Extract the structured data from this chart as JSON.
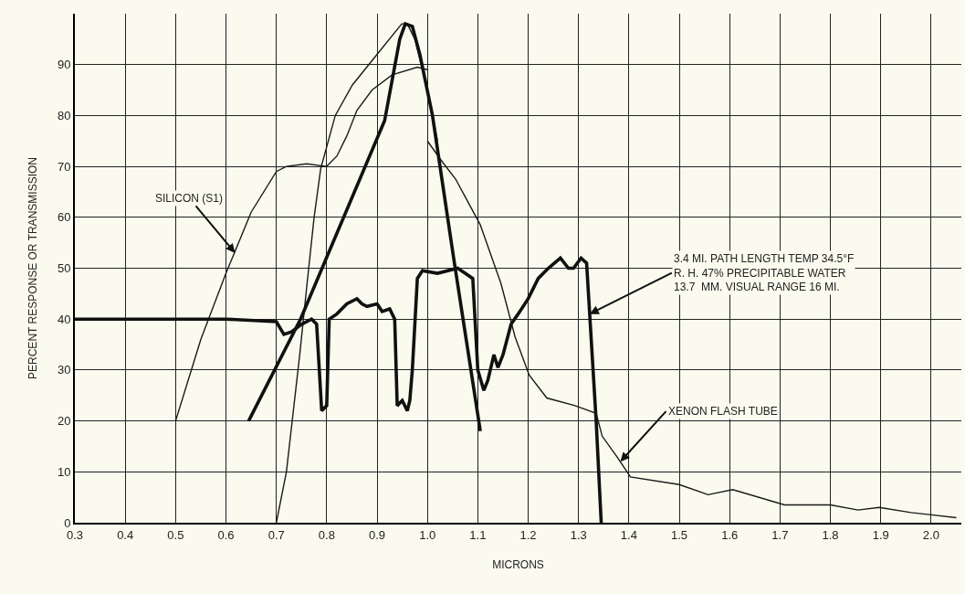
{
  "chart_data": {
    "type": "line",
    "xlabel": "MICRONS",
    "ylabel": "PERCENT RESPONSE OR TRANSMISSION",
    "xlim": [
      0.3,
      2.06
    ],
    "ylim": [
      0,
      100
    ],
    "xticks": [
      0.3,
      0.4,
      0.5,
      0.6,
      0.7,
      0.8,
      0.9,
      {
        "value": 1.0,
        "label": "1.0"
      },
      1.1,
      1.2,
      1.3,
      1.4,
      1.5,
      1.6,
      1.7,
      1.8,
      1.9,
      {
        "value": 2.0,
        "label": "2.0"
      }
    ],
    "yticks": [
      0,
      10,
      20,
      30,
      40,
      50,
      60,
      70,
      80,
      90
    ],
    "grid": true,
    "marker": "none",
    "line_style": "solid",
    "series": [
      {
        "color": "#1a1a1a",
        "x": [
          0.5,
          0.55,
          0.6,
          0.65,
          0.7,
          0.72,
          0.76,
          0.8,
          0.82,
          0.84,
          0.86,
          0.89,
          0.93,
          0.98,
          1.0
        ],
        "values": [
          20,
          36,
          49,
          61,
          69,
          70,
          70.5,
          70,
          72,
          76,
          81,
          85,
          88,
          89.5,
          89
        ]
      },
      {
        "color": "#1a1a1a",
        "x": [
          0.7,
          0.72,
          0.747,
          0.761,
          0.775,
          0.788,
          0.817,
          0.851,
          0.9,
          0.949,
          0.96,
          0.975,
          1.0,
          1.02
        ],
        "values": [
          0,
          10,
          33.5,
          47,
          60,
          69.5,
          80,
          86,
          92,
          98,
          98,
          95,
          85,
          75
        ]
      },
      {
        "color": "#111111",
        "x": [
          0.645,
          0.748,
          0.915,
          0.945,
          0.956,
          0.97,
          0.985,
          1.01,
          1.052,
          1.105
        ],
        "values": [
          20,
          40,
          79,
          95,
          98,
          97.5,
          92,
          80,
          52,
          18
        ]
      },
      {
        "color": "#111111",
        "x": [
          0.3,
          0.5,
          0.6,
          0.7,
          0.715,
          0.73,
          0.75,
          0.77,
          0.78,
          0.79,
          0.8,
          0.805,
          0.82,
          0.84,
          0.86,
          0.87,
          0.88,
          0.9,
          0.91,
          0.925,
          0.935,
          0.94,
          0.95,
          0.96,
          0.965,
          0.97,
          0.98,
          0.99,
          1.02,
          1.06,
          1.09,
          1.1,
          1.112,
          1.12,
          1.132,
          1.14,
          1.15,
          1.166,
          1.18,
          1.2,
          1.22,
          1.24,
          1.264,
          1.28,
          1.29,
          1.305,
          1.316,
          1.335,
          1.345
        ],
        "values": [
          40,
          40,
          40,
          39.5,
          37,
          37.5,
          39,
          40,
          39,
          22,
          23,
          40,
          41,
          43,
          44,
          43,
          42.5,
          43,
          41.5,
          42,
          40,
          23,
          24,
          22,
          24,
          30,
          48,
          49.5,
          49,
          50,
          48,
          30,
          26,
          28,
          33,
          30.5,
          33,
          39,
          41,
          44,
          48,
          50,
          52,
          50,
          50,
          52,
          51,
          20,
          0
        ]
      },
      {
        "color": "#1a1a1a",
        "x": [
          1.0,
          1.025,
          1.056,
          1.105,
          1.146,
          1.174,
          1.202,
          1.237,
          1.293,
          1.335,
          1.347,
          1.376,
          1.403,
          1.5,
          1.557,
          1.606,
          1.709,
          1.8,
          1.855,
          1.897,
          1.96,
          2.05
        ],
        "values": [
          75,
          71.5,
          67.5,
          58.5,
          47,
          36.5,
          29,
          24.5,
          23,
          21.5,
          17,
          13,
          9,
          7.5,
          5.5,
          6.5,
          3.5,
          3.5,
          2.5,
          3,
          2,
          1
        ]
      }
    ],
    "annotations": [
      {
        "text": "SILICON (S1)",
        "x": 0.618,
        "y": 53
      },
      {
        "text": "3.4 MI. PATH LENGTH TEMP 34.5°F\nR. H. 47% PRECIPITABLE WATER\n13.7  MM. VISUAL RANGE 16 MI.",
        "x": 1.322,
        "y": 41
      },
      {
        "text": "XENON FLASH TUBE",
        "x": 1.383,
        "y": 12
      }
    ]
  }
}
